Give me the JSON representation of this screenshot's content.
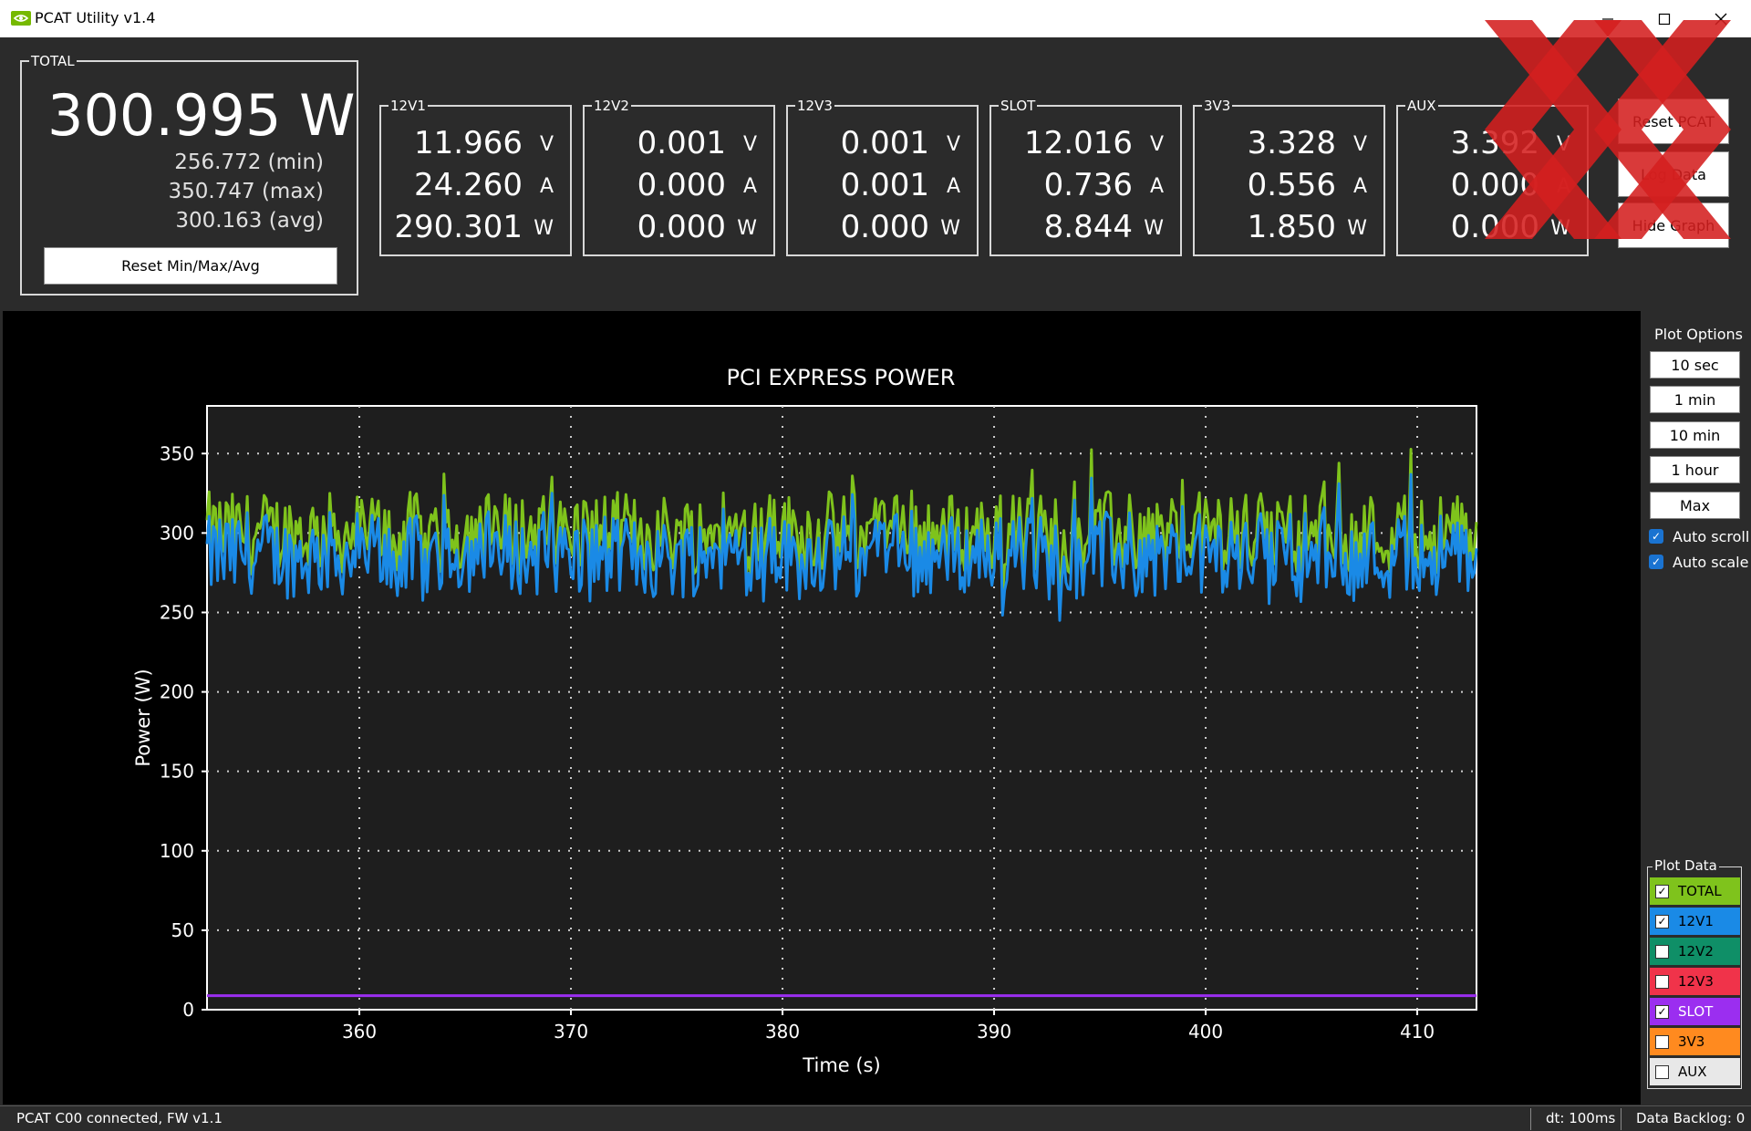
{
  "window": {
    "title": "PCAT Utility v1.4"
  },
  "total": {
    "label": "TOTAL",
    "watts": "300.995 W",
    "min": "256.772 (min)",
    "max": "350.747 (max)",
    "avg": "300.163 (avg)",
    "reset_label": "Reset Min/Max/Avg"
  },
  "rails": [
    {
      "name": "12V1",
      "volts": "11.966",
      "amps": "24.260",
      "watts": "290.301"
    },
    {
      "name": "12V2",
      "volts": "0.001",
      "amps": "0.000",
      "watts": "0.000"
    },
    {
      "name": "12V3",
      "volts": "0.001",
      "amps": "0.001",
      "watts": "0.000"
    },
    {
      "name": "SLOT",
      "volts": "12.016",
      "amps": "0.736",
      "watts": "8.844"
    },
    {
      "name": "3V3",
      "volts": "3.328",
      "amps": "0.556",
      "watts": "1.850"
    },
    {
      "name": "AUX",
      "volts": "3.392",
      "amps": "0.000",
      "watts": "0.000"
    }
  ],
  "units": {
    "v": "V",
    "a": "A",
    "w": "W"
  },
  "buttons": {
    "reset_pcat": "Reset PCAT",
    "log_data": "Log Data",
    "hide_graph": "Hide Graph"
  },
  "plot_options": {
    "label": "Plot Options",
    "ranges": [
      "10 sec",
      "1 min",
      "10 min",
      "1 hour",
      "Max"
    ],
    "auto_scroll": "Auto scroll",
    "auto_scale": "Auto scale"
  },
  "plot_data": {
    "label": "Plot Data",
    "items": [
      {
        "name": "TOTAL",
        "checked": true,
        "color": "#7fc31c",
        "text_color": "#000000"
      },
      {
        "name": "12V1",
        "checked": true,
        "color": "#1a8ae6",
        "text_color": "#000000"
      },
      {
        "name": "12V2",
        "checked": false,
        "color": "#0f8f67",
        "text_color": "#000000"
      },
      {
        "name": "12V3",
        "checked": false,
        "color": "#f0334a",
        "text_color": "#000000"
      },
      {
        "name": "SLOT",
        "checked": true,
        "color": "#9b2ef0",
        "text_color": "#ffffff"
      },
      {
        "name": "3V3",
        "checked": false,
        "color": "#ff8a1f",
        "text_color": "#000000"
      },
      {
        "name": "AUX",
        "checked": false,
        "color": "#e8e8e8",
        "text_color": "#000000"
      }
    ]
  },
  "status": {
    "connection": "PCAT C00 connected, FW v1.1",
    "dt": "dt: 100ms",
    "backlog": "Data Backlog: 0"
  },
  "chart_data": {
    "type": "line",
    "title": "PCI EXPRESS POWER",
    "xlabel": "Time (s)",
    "ylabel": "Power (W)",
    "xlim": [
      352.8,
      412.8
    ],
    "ylim": [
      0,
      380
    ],
    "xticks": [
      360,
      370,
      380,
      390,
      400,
      410
    ],
    "yticks": [
      0,
      50,
      100,
      150,
      200,
      250,
      300,
      350
    ],
    "grid": true,
    "series": [
      {
        "name": "TOTAL",
        "color": "#7fc31c",
        "mean": 300,
        "min": 256.772,
        "max": 350.747
      },
      {
        "name": "12V1",
        "color": "#1a8ae6",
        "mean": 290,
        "min": 245,
        "max": 342
      },
      {
        "name": "SLOT",
        "color": "#9b2ef0",
        "values_constant": 8.8
      }
    ]
  }
}
